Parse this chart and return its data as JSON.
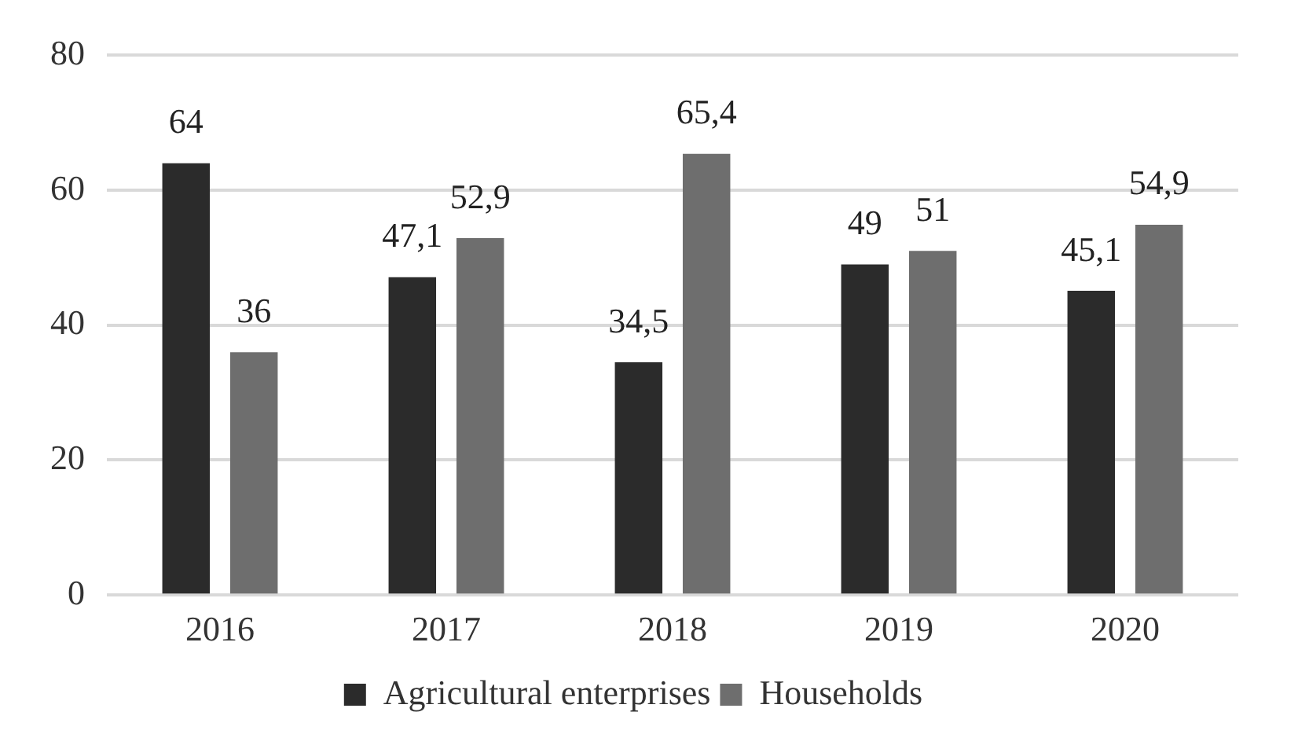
{
  "chart_data": {
    "type": "bar",
    "categories": [
      "2016",
      "2017",
      "2018",
      "2019",
      "2020"
    ],
    "series": [
      {
        "name": "Agricultural enterprises",
        "color": "#2b2b2b",
        "values": [
          64,
          47.1,
          34.5,
          49,
          45.1
        ],
        "value_labels": [
          "64",
          "47,1",
          "34,5",
          "49",
          "45,1"
        ]
      },
      {
        "name": "Households",
        "color": "#6e6e6e",
        "values": [
          36,
          52.9,
          65.4,
          51,
          54.9
        ],
        "value_labels": [
          "36",
          "52,9",
          "65,4",
          "51",
          "54,9"
        ]
      }
    ],
    "ylim": [
      0,
      80
    ],
    "yticks": [
      0,
      20,
      40,
      60,
      80
    ],
    "grid": "y",
    "legend": "bottom"
  }
}
